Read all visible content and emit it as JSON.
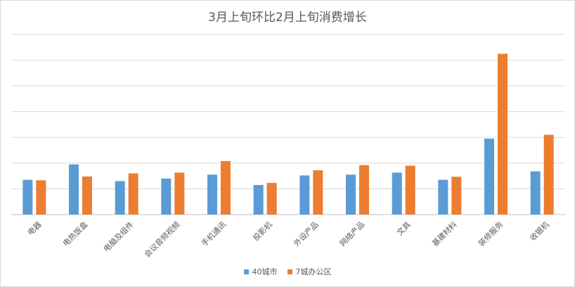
{
  "chart_data": {
    "type": "bar",
    "title": "3月上旬环比2月上旬消费增长",
    "categories": [
      "电器",
      "电热饭盒",
      "电脑及组件",
      "会议音频视频",
      "手机通讯",
      "投影机",
      "外设产品",
      "网络产品",
      "文具",
      "基建材料",
      "装修服务",
      "收银机"
    ],
    "series": [
      {
        "name": "40城市",
        "color": "#5b9bd5",
        "values": [
          1.35,
          1.95,
          1.3,
          1.4,
          1.55,
          1.15,
          1.52,
          1.55,
          1.63,
          1.35,
          2.95,
          1.68
        ]
      },
      {
        "name": "7城办公区",
        "color": "#ed7d31",
        "values": [
          1.33,
          1.48,
          1.6,
          1.63,
          2.08,
          1.23,
          1.72,
          1.92,
          1.9,
          1.47,
          6.25,
          3.1
        ]
      }
    ],
    "ylim": [
      0,
      7
    ],
    "grid": true,
    "legend_position": "bottom"
  }
}
